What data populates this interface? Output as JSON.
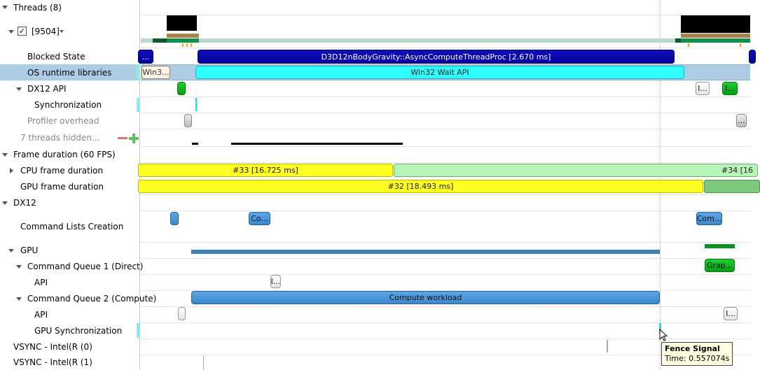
{
  "tree": [
    {
      "label": "Threads (8)",
      "expanded": true
    },
    {
      "label": "[9504]",
      "checked": true
    },
    {
      "label": "Blocked State"
    },
    {
      "label": "OS runtime libraries",
      "selected": true
    },
    {
      "label": "DX12 API",
      "expanded": true
    },
    {
      "label": "Synchronization"
    },
    {
      "label": "Profiler overhead"
    },
    {
      "label": "7 threads hidden..."
    },
    {
      "label": "Frame duration (60 FPS)",
      "expanded": true
    },
    {
      "label": "CPU frame duration",
      "expanded": false
    },
    {
      "label": "GPU frame duration"
    },
    {
      "label": "DX12",
      "expanded": true
    },
    {
      "label": "Command Lists Creation"
    },
    {
      "label": "GPU",
      "expanded": true
    },
    {
      "label": "Command Queue 1 (Direct)",
      "expanded": true
    },
    {
      "label": "API"
    },
    {
      "label": "Command Queue 2 (Compute)",
      "expanded": true
    },
    {
      "label": "API"
    },
    {
      "label": "GPU Synchronization"
    },
    {
      "label": "VSYNC - Intel(R (0)"
    },
    {
      "label": "VSYNC - Intel(R (1)"
    }
  ],
  "bars": {
    "blocked_small": "...",
    "blocked_main": "D3D12nBodyGravity::AsyncComputeThreadProc [2.670 ms]",
    "os_small": "Win3...",
    "os_main": "Win32 Wait API",
    "dx12_right_white": "I...",
    "dx12_right_green": "I...",
    "profiler_right": "...",
    "cpu_frame_33": "#33 [16.725 ms]",
    "cpu_frame_34": "#34 [16",
    "gpu_frame_32": "#32 [18.493 ms]",
    "cmdlist_1": "Co...",
    "cmdlist_2": "Com...",
    "cq1_right": "Grap...",
    "cq1_api": "I...",
    "compute": "Compute workload",
    "cq2_api_right": "I..."
  },
  "tooltip": {
    "title": "Fence Signal",
    "time": "Time: 0.557074s"
  },
  "colors": {
    "selected_row": "#adcde6",
    "blocked": "#0000a0",
    "os_runtime": "#30ffff",
    "frame_yellow": "#ffff22",
    "compute": "#4a96d8"
  }
}
